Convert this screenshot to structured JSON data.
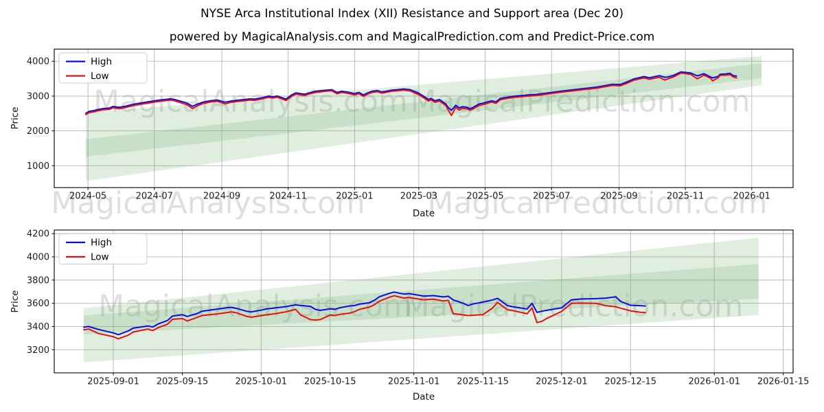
{
  "title": "NYSE Arca Institutional Index (XII) Resistance and Support area (Dec 20)",
  "subtitle": "powered by MagicalAnalysis.com and MagicalPrediction.com and Predict-Price.com",
  "watermarks": [
    {
      "text": "MagicalAnalysis.com"
    },
    {
      "text": "MagicalPrediction.com"
    },
    {
      "text": "MagicalAnalysis.com"
    },
    {
      "text": "MagicalPrediction.com"
    },
    {
      "text": "MagicalAnalysis.com"
    },
    {
      "text": "MagicalPrediction.com"
    }
  ],
  "colors": {
    "high": "#0a0ae6",
    "low": "#e60f0f",
    "band": "#70b070",
    "grid": "#b3b3b3",
    "spine": "#000000",
    "legend_border": "#cccccc"
  },
  "chart_data": [
    {
      "type": "line",
      "name": "overview",
      "xlabel": "Date",
      "ylabel": "Price",
      "grid": true,
      "legend_position": "upper left",
      "legend": [
        "High",
        "Low"
      ],
      "box": {
        "l": 79,
        "t": 71.5,
        "r": 1155,
        "b": 273.2
      },
      "xlim": [
        "2024-03-31",
        "2026-02-08"
      ],
      "ylim": [
        371,
        4349
      ],
      "yticks": [
        1000,
        2000,
        3000,
        4000
      ],
      "xticks": [
        {
          "d": "2024-05-01",
          "label": "2024-05"
        },
        {
          "d": "2024-07-01",
          "label": "2024-07"
        },
        {
          "d": "2024-09-01",
          "label": "2024-09"
        },
        {
          "d": "2024-11-01",
          "label": "2024-11"
        },
        {
          "d": "2025-01-01",
          "label": "2025-01"
        },
        {
          "d": "2025-03-01",
          "label": "2025-03"
        },
        {
          "d": "2025-05-01",
          "label": "2025-05"
        },
        {
          "d": "2025-07-01",
          "label": "2025-07"
        },
        {
          "d": "2025-09-01",
          "label": "2025-09"
        },
        {
          "d": "2025-11-01",
          "label": "2025-11"
        },
        {
          "d": "2026-01-01",
          "label": "2026-01"
        }
      ],
      "bands": [
        {
          "x": [
            "2024-04-29",
            "2026-01-10"
          ],
          "top": [
            2520,
            4150
          ],
          "bottom": [
            1260,
            3510
          ]
        },
        {
          "x": [
            "2024-04-29",
            "2026-01-10"
          ],
          "top": [
            1760,
            3940
          ],
          "bottom": [
            560,
            3310
          ]
        }
      ],
      "dates": [
        "2024-04-29",
        "2024-05-02",
        "2024-05-07",
        "2024-05-10",
        "2024-05-15",
        "2024-05-21",
        "2024-05-24",
        "2024-05-30",
        "2024-06-05",
        "2024-06-12",
        "2024-06-19",
        "2024-06-26",
        "2024-07-03",
        "2024-07-10",
        "2024-07-16",
        "2024-07-19",
        "2024-07-24",
        "2024-07-31",
        "2024-08-05",
        "2024-08-09",
        "2024-08-15",
        "2024-08-22",
        "2024-08-28",
        "2024-09-04",
        "2024-09-09",
        "2024-09-16",
        "2024-09-23",
        "2024-09-27",
        "2024-10-01",
        "2024-10-07",
        "2024-10-14",
        "2024-10-18",
        "2024-10-22",
        "2024-10-28",
        "2024-10-30",
        "2024-11-04",
        "2024-11-08",
        "2024-11-12",
        "2024-11-16",
        "2024-11-20",
        "2024-11-26",
        "2024-12-02",
        "2024-12-06",
        "2024-12-11",
        "2024-12-16",
        "2024-12-20",
        "2024-12-25",
        "2025-01-01",
        "2025-01-05",
        "2025-01-09",
        "2025-01-13",
        "2025-01-17",
        "2025-01-22",
        "2025-01-26",
        "2025-01-30",
        "2025-02-04",
        "2025-02-09",
        "2025-02-15",
        "2025-02-21",
        "2025-03-01",
        "2025-03-07",
        "2025-03-10",
        "2025-03-12",
        "2025-03-16",
        "2025-03-20",
        "2025-03-23",
        "2025-03-26",
        "2025-03-28",
        "2025-03-31",
        "2025-04-04",
        "2025-04-07",
        "2025-04-10",
        "2025-04-14",
        "2025-04-17",
        "2025-04-19",
        "2025-04-25",
        "2025-05-01",
        "2025-05-07",
        "2025-05-11",
        "2025-05-15",
        "2025-05-21",
        "2025-05-28",
        "2025-06-03",
        "2025-06-09",
        "2025-06-17",
        "2025-06-24",
        "2025-07-01",
        "2025-07-08",
        "2025-07-15",
        "2025-07-22",
        "2025-07-29",
        "2025-08-05",
        "2025-08-12",
        "2025-08-19",
        "2025-08-26",
        "2025-09-02",
        "2025-09-08",
        "2025-09-15",
        "2025-09-24",
        "2025-09-29",
        "2025-10-08",
        "2025-10-13",
        "2025-10-16",
        "2025-10-21",
        "2025-10-28",
        "2025-10-31",
        "2025-11-06",
        "2025-11-12",
        "2025-11-18",
        "2025-11-24",
        "2025-11-26",
        "2025-12-01",
        "2025-12-03",
        "2025-12-08",
        "2025-12-12",
        "2025-12-15",
        "2025-12-18"
      ],
      "high": [
        2505,
        2560,
        2588,
        2612,
        2642,
        2658,
        2700,
        2678,
        2712,
        2768,
        2802,
        2838,
        2872,
        2900,
        2920,
        2905,
        2862,
        2798,
        2705,
        2762,
        2828,
        2868,
        2885,
        2825,
        2855,
        2882,
        2905,
        2920,
        2912,
        2945,
        3000,
        2978,
        3000,
        2933,
        2913,
        3032,
        3090,
        3071,
        3051,
        3091,
        3138,
        3158,
        3170,
        3184,
        3104,
        3138,
        3118,
        3071,
        3104,
        3031,
        3091,
        3138,
        3158,
        3118,
        3138,
        3170,
        3184,
        3204,
        3184,
        3080,
        2965,
        2900,
        2933,
        2866,
        2900,
        2834,
        2768,
        2670,
        2590,
        2735,
        2660,
        2695,
        2680,
        2640,
        2658,
        2768,
        2814,
        2866,
        2834,
        2933,
        2965,
        2998,
        3011,
        3031,
        3048,
        3075,
        3105,
        3135,
        3160,
        3185,
        3210,
        3235,
        3260,
        3300,
        3340,
        3332,
        3400,
        3495,
        3560,
        3525,
        3585,
        3540,
        3548,
        3592,
        3695,
        3682,
        3660,
        3580,
        3642,
        3550,
        3522,
        3560,
        3628,
        3636,
        3655,
        3583,
        3577
      ],
      "low": [
        2468,
        2525,
        2550,
        2575,
        2605,
        2620,
        2662,
        2635,
        2675,
        2730,
        2765,
        2800,
        2838,
        2865,
        2886,
        2868,
        2822,
        2752,
        2643,
        2712,
        2788,
        2832,
        2850,
        2775,
        2818,
        2848,
        2870,
        2888,
        2878,
        2912,
        2965,
        2945,
        2968,
        2898,
        2872,
        2990,
        3055,
        3038,
        3018,
        3058,
        3105,
        3125,
        3140,
        3152,
        3065,
        3105,
        3085,
        3035,
        3070,
        2992,
        3055,
        3105,
        3126,
        3085,
        3106,
        3138,
        3152,
        3172,
        3150,
        3040,
        2920,
        2856,
        2895,
        2820,
        2862,
        2790,
        2718,
        2598,
        2440,
        2678,
        2598,
        2650,
        2636,
        2596,
        2614,
        2724,
        2772,
        2828,
        2792,
        2895,
        2930,
        2963,
        2978,
        2999,
        3016,
        3044,
        3074,
        3104,
        3129,
        3154,
        3180,
        3204,
        3228,
        3266,
        3305,
        3294,
        3362,
        3460,
        3522,
        3482,
        3540,
        3462,
        3496,
        3548,
        3660,
        3648,
        3622,
        3495,
        3600,
        3512,
        3438,
        3522,
        3595,
        3600,
        3618,
        3552,
        3520
      ]
    },
    {
      "type": "line",
      "name": "recent-detail",
      "xlabel": "Date",
      "ylabel": "Price",
      "grid": true,
      "legend_position": "upper left",
      "legend": [
        "High",
        "Low"
      ],
      "box": {
        "l": 79,
        "t": 335,
        "r": 1155,
        "b": 543
      },
      "xlim": [
        "2025-08-20",
        "2026-01-17"
      ],
      "ylim": [
        3001,
        4231
      ],
      "yticks": [
        3200,
        3400,
        3600,
        3800,
        4000,
        4200
      ],
      "xticks": [
        {
          "d": "2025-09-01",
          "label": "2025-09-01"
        },
        {
          "d": "2025-09-15",
          "label": "2025-09-15"
        },
        {
          "d": "2025-10-01",
          "label": "2025-10-01"
        },
        {
          "d": "2025-10-15",
          "label": "2025-10-15"
        },
        {
          "d": "2025-11-01",
          "label": "2025-11-01"
        },
        {
          "d": "2025-11-15",
          "label": "2025-11-15"
        },
        {
          "d": "2025-12-01",
          "label": "2025-12-01"
        },
        {
          "d": "2025-12-15",
          "label": "2025-12-15"
        },
        {
          "d": "2026-01-01",
          "label": "2026-01-01"
        },
        {
          "d": "2026-01-15",
          "label": "2026-01-15"
        }
      ],
      "bands": [
        {
          "x": [
            "2025-08-26",
            "2026-01-10"
          ],
          "top": [
            3558,
            4165
          ],
          "bottom": [
            3332,
            3640
          ]
        },
        {
          "x": [
            "2025-08-26",
            "2026-01-10"
          ],
          "top": [
            3495,
            3938
          ],
          "bottom": [
            3092,
            3500
          ]
        }
      ],
      "dates": [
        "2025-08-26",
        "2025-08-27",
        "2025-08-29",
        "2025-09-01",
        "2025-09-02",
        "2025-09-04",
        "2025-09-05",
        "2025-09-08",
        "2025-09-09",
        "2025-09-10",
        "2025-09-12",
        "2025-09-13",
        "2025-09-15",
        "2025-09-16",
        "2025-09-18",
        "2025-09-19",
        "2025-09-22",
        "2025-09-24",
        "2025-09-25",
        "2025-09-26",
        "2025-09-28",
        "2025-09-29",
        "2025-10-01",
        "2025-10-02",
        "2025-10-04",
        "2025-10-06",
        "2025-10-08",
        "2025-10-09",
        "2025-10-11",
        "2025-10-12",
        "2025-10-13",
        "2025-10-15",
        "2025-10-16",
        "2025-10-17",
        "2025-10-19",
        "2025-10-20",
        "2025-10-21",
        "2025-10-23",
        "2025-10-24",
        "2025-10-25",
        "2025-10-27",
        "2025-10-28",
        "2025-10-30",
        "2025-10-31",
        "2025-11-03",
        "2025-11-05",
        "2025-11-07",
        "2025-11-08",
        "2025-11-09",
        "2025-11-11",
        "2025-11-12",
        "2025-11-13",
        "2025-11-15",
        "2025-11-17",
        "2025-11-18",
        "2025-11-20",
        "2025-11-21",
        "2025-11-24",
        "2025-11-25",
        "2025-11-26",
        "2025-11-27",
        "2025-11-28",
        "2025-12-01",
        "2025-12-03",
        "2025-12-05",
        "2025-12-08",
        "2025-12-10",
        "2025-12-12",
        "2025-12-13",
        "2025-12-15",
        "2025-12-17",
        "2025-12-18"
      ],
      "high": [
        3395,
        3400,
        3375,
        3345,
        3330,
        3362,
        3386,
        3405,
        3396,
        3420,
        3452,
        3490,
        3502,
        3487,
        3512,
        3532,
        3550,
        3562,
        3565,
        3556,
        3532,
        3526,
        3541,
        3551,
        3561,
        3571,
        3587,
        3581,
        3574,
        3548,
        3539,
        3552,
        3548,
        3562,
        3577,
        3581,
        3593,
        3605,
        3626,
        3656,
        3685,
        3697,
        3679,
        3684,
        3662,
        3666,
        3655,
        3661,
        3629,
        3600,
        3581,
        3594,
        3610,
        3629,
        3643,
        3581,
        3571,
        3551,
        3600,
        3522,
        3532,
        3540,
        3561,
        3630,
        3637,
        3640,
        3645,
        3656,
        3616,
        3583,
        3580,
        3577
      ],
      "low": [
        3372,
        3378,
        3340,
        3312,
        3295,
        3325,
        3352,
        3378,
        3365,
        3388,
        3420,
        3462,
        3468,
        3448,
        3478,
        3495,
        3508,
        3520,
        3526,
        3518,
        3488,
        3480,
        3494,
        3500,
        3512,
        3526,
        3548,
        3500,
        3460,
        3456,
        3460,
        3499,
        3495,
        3505,
        3515,
        3529,
        3548,
        3568,
        3588,
        3618,
        3652,
        3665,
        3645,
        3650,
        3630,
        3636,
        3620,
        3625,
        3512,
        3500,
        3495,
        3498,
        3502,
        3560,
        3608,
        3545,
        3538,
        3510,
        3560,
        3434,
        3445,
        3470,
        3530,
        3600,
        3602,
        3600,
        3580,
        3570,
        3558,
        3535,
        3523,
        3520
      ]
    }
  ]
}
